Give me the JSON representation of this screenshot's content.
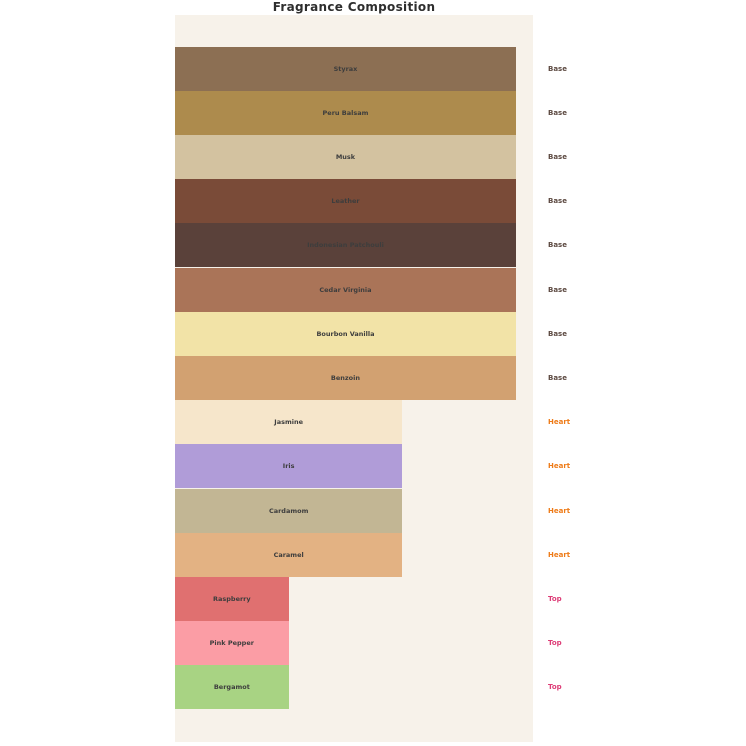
{
  "title": "Fragrance Composition",
  "colors": {
    "page_background": "#ffffff",
    "axes_background": "#f7f2ea",
    "title_text": "#2e2e2e",
    "bar_label_text": "#3d3d3d",
    "group_label_colors": {
      "Base": "#5d4a42",
      "Heart": "#ee7b18",
      "Top": "#dd3d77"
    }
  },
  "chart_data": {
    "type": "bar",
    "orientation": "horizontal",
    "title": "Fragrance Composition",
    "xlabel": "",
    "ylabel": "",
    "xlim": [
      0,
      3.15
    ],
    "grid": false,
    "legend": "none",
    "axes_visible": false,
    "group_label_position": "right-of-plot",
    "categories": [
      "Styrax",
      "Peru Balsam",
      "Musk",
      "Leather",
      "Indonesian Patchouli",
      "Cedar Virginia",
      "Bourbon Vanilla",
      "Benzoin",
      "Jasmine",
      "Iris",
      "Cardamom",
      "Caramel",
      "Raspberry",
      "Pink Pepper",
      "Bergamot"
    ],
    "values": [
      3,
      3,
      3,
      3,
      3,
      3,
      3,
      3,
      2,
      2,
      2,
      2,
      1,
      1,
      1
    ],
    "bars": [
      {
        "label": "Styrax",
        "group": "Base",
        "value": 3,
        "color": "#8c6f53"
      },
      {
        "label": "Peru Balsam",
        "group": "Base",
        "value": 3,
        "color": "#ad8b4d"
      },
      {
        "label": "Musk",
        "group": "Base",
        "value": 3,
        "color": "#d3c2a0"
      },
      {
        "label": "Leather",
        "group": "Base",
        "value": 3,
        "color": "#7a4b38"
      },
      {
        "label": "Indonesian Patchouli",
        "group": "Base",
        "value": 3,
        "color": "#5a413a"
      },
      {
        "label": "Cedar Virginia",
        "group": "Base",
        "value": 3,
        "color": "#aa7458"
      },
      {
        "label": "Bourbon Vanilla",
        "group": "Base",
        "value": 3,
        "color": "#f2e3a7"
      },
      {
        "label": "Benzoin",
        "group": "Base",
        "value": 3,
        "color": "#d2a171"
      },
      {
        "label": "Jasmine",
        "group": "Heart",
        "value": 2,
        "color": "#f6e6cb"
      },
      {
        "label": "Iris",
        "group": "Heart",
        "value": 2,
        "color": "#b09cd8"
      },
      {
        "label": "Cardamom",
        "group": "Heart",
        "value": 2,
        "color": "#c2b694"
      },
      {
        "label": "Caramel",
        "group": "Heart",
        "value": 2,
        "color": "#e3b283"
      },
      {
        "label": "Raspberry",
        "group": "Top",
        "value": 1,
        "color": "#e07070"
      },
      {
        "label": "Pink Pepper",
        "group": "Top",
        "value": 1,
        "color": "#fb9da5"
      },
      {
        "label": "Bergamot",
        "group": "Top",
        "value": 1,
        "color": "#a8d383"
      }
    ]
  }
}
